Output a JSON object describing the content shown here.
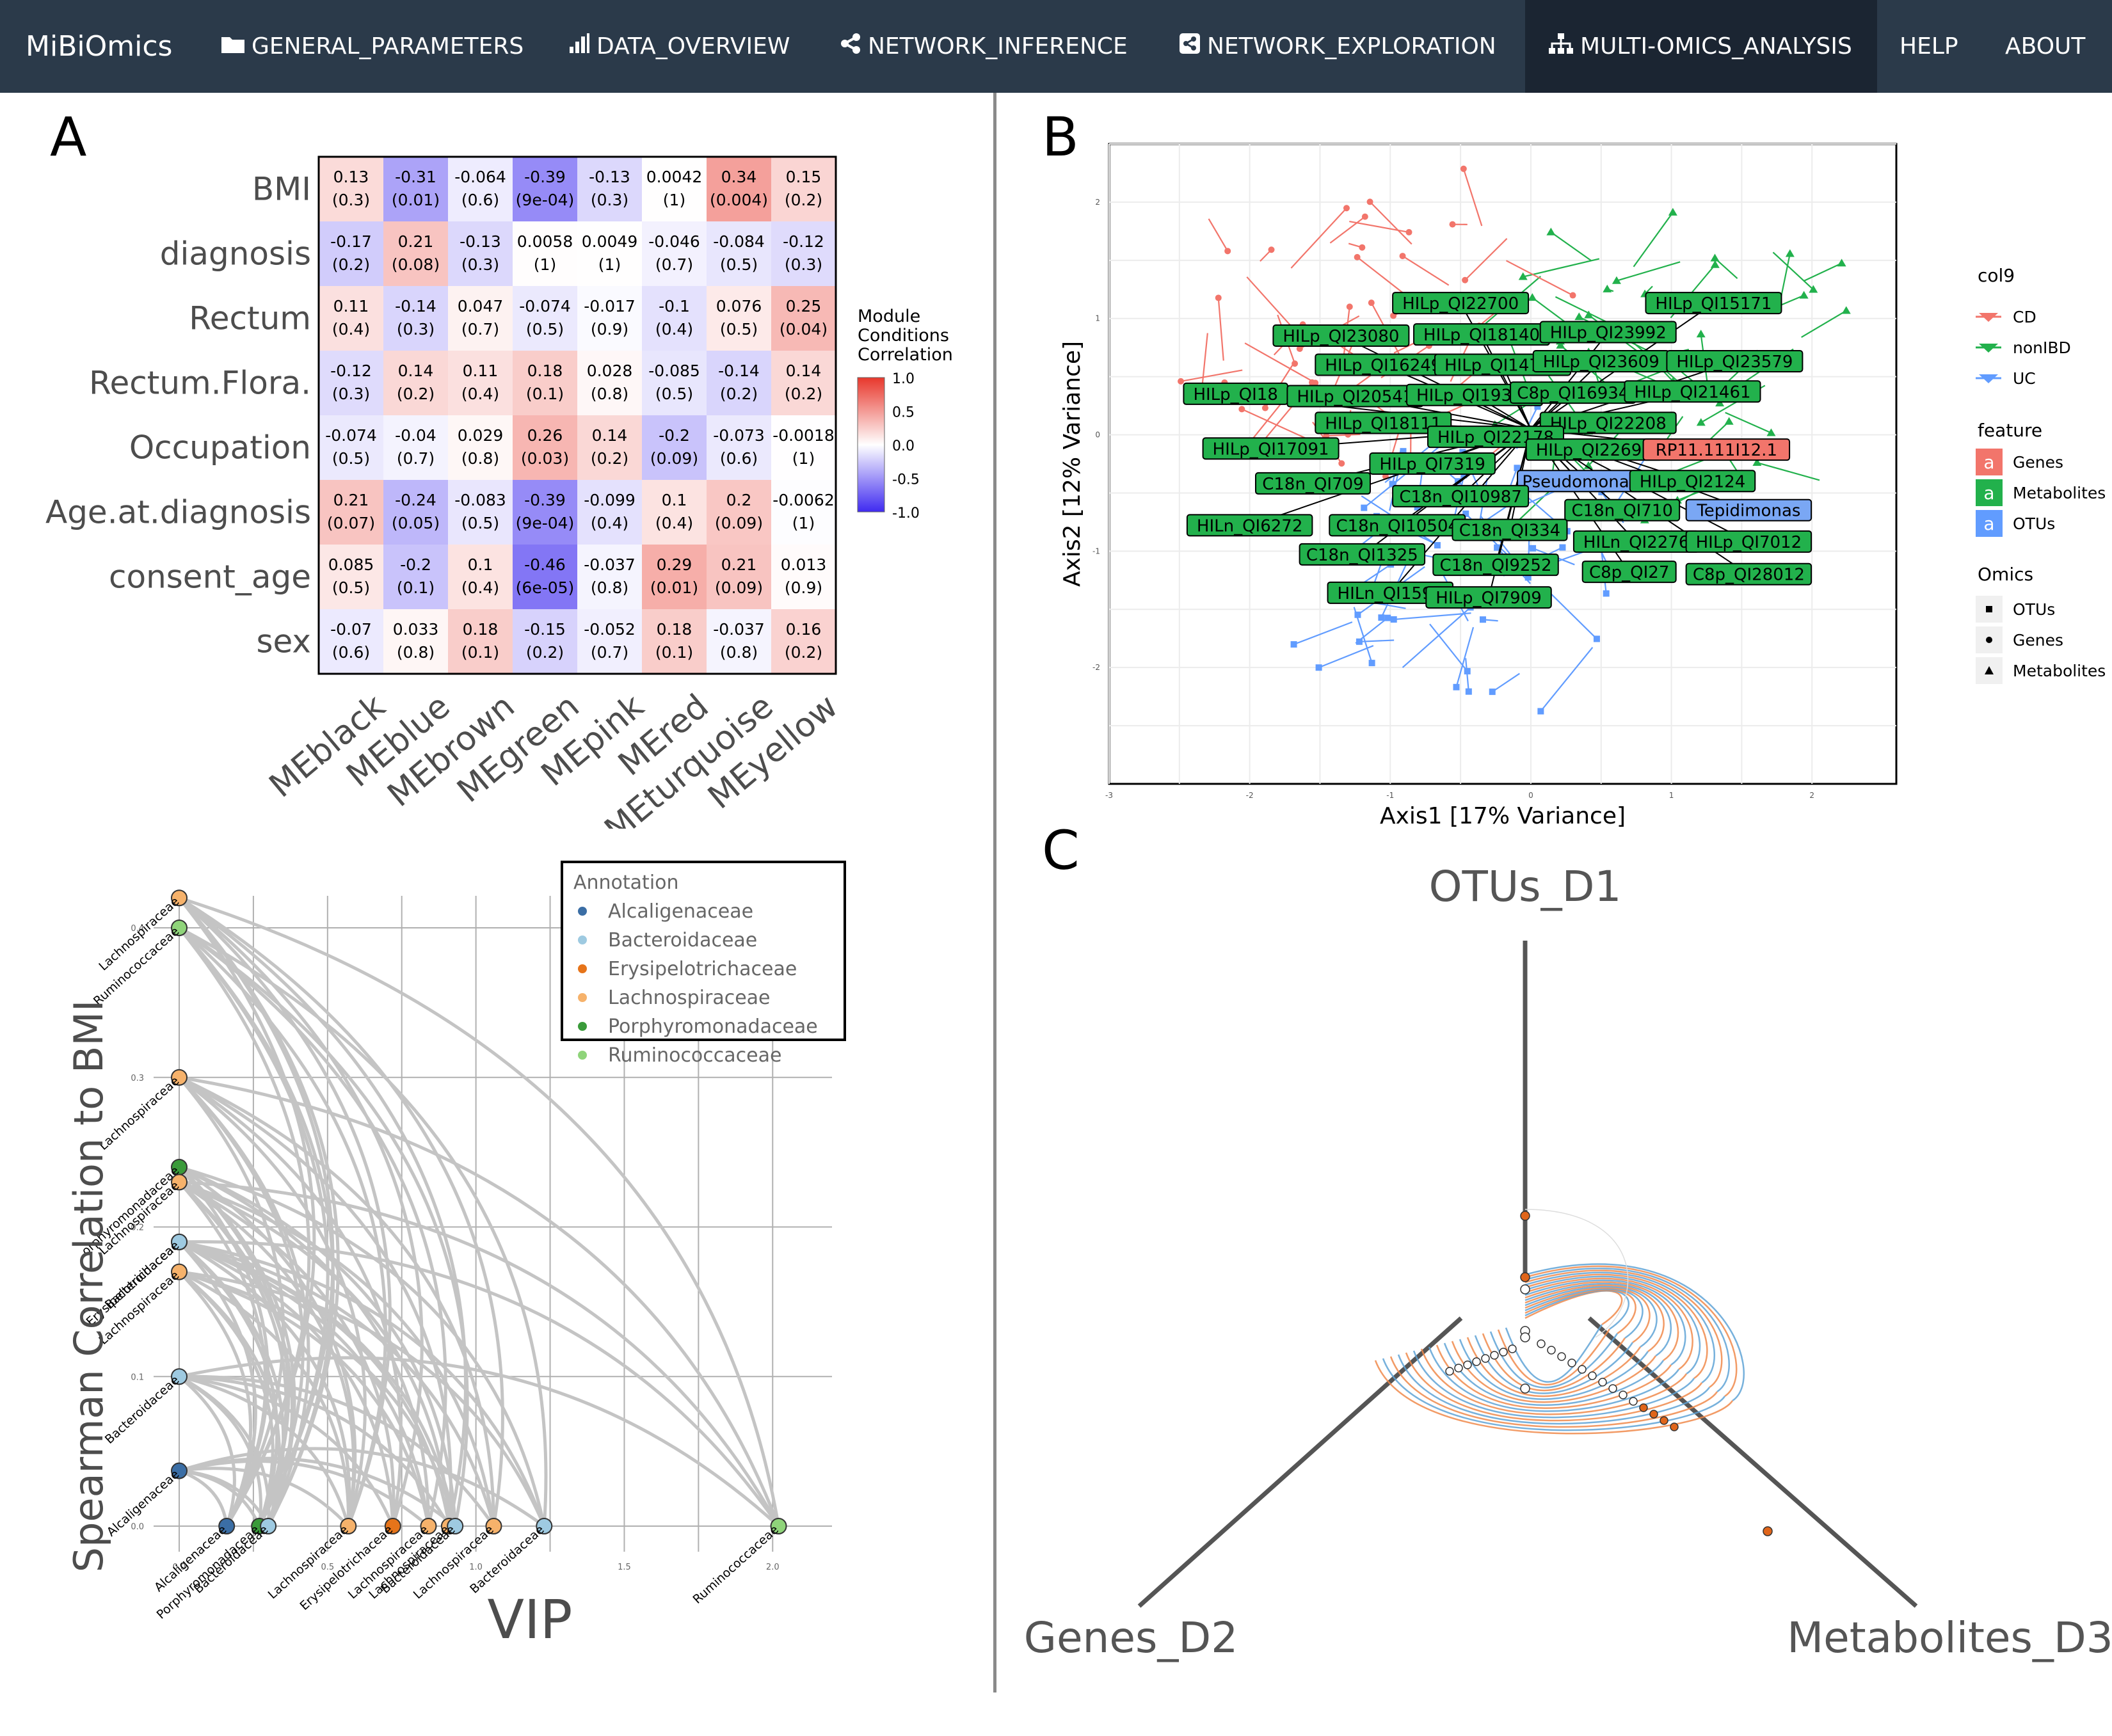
{
  "navbar": {
    "brand": "MiBiOmics",
    "items": [
      {
        "label": "GENERAL_PARAMETERS",
        "icon": "folder-icon"
      },
      {
        "label": "DATA_OVERVIEW",
        "icon": "bar-chart-icon"
      },
      {
        "label": "NETWORK_INFERENCE",
        "icon": "share-icon"
      },
      {
        "label": "NETWORK_EXPLORATION",
        "icon": "share-square-icon"
      },
      {
        "label": "MULTI-OMICS_ANALYSIS",
        "icon": "sitemap-icon",
        "active": true
      },
      {
        "label": "HELP"
      },
      {
        "label": "ABOUT"
      }
    ]
  },
  "panels": {
    "a": "A",
    "b": "B",
    "c": "C"
  },
  "heatmap": {
    "rows": [
      "BMI",
      "diagnosis",
      "Rectum",
      "Rectum.Flora.",
      "Occupation",
      "Age.at.diagnosis",
      "consent_age",
      "sex"
    ],
    "cols": [
      "MEblack",
      "MEblue",
      "MEbrown",
      "MEgreen",
      "MEpink",
      "MEred",
      "MEturquoise",
      "MEyellow"
    ],
    "values": [
      [
        "0.13",
        "-0.31",
        "-0.064",
        "-0.39",
        "-0.13",
        "0.0042",
        "0.34",
        "0.15"
      ],
      [
        "-0.17",
        "0.21",
        "-0.13",
        "0.0058",
        "0.0049",
        "-0.046",
        "-0.084",
        "-0.12"
      ],
      [
        "0.11",
        "-0.14",
        "0.047",
        "-0.074",
        "-0.017",
        "-0.1",
        "0.076",
        "0.25"
      ],
      [
        "-0.12",
        "0.14",
        "0.11",
        "0.18",
        "0.028",
        "-0.085",
        "-0.14",
        "0.14"
      ],
      [
        "-0.074",
        "-0.04",
        "0.029",
        "0.26",
        "0.14",
        "-0.2",
        "-0.073",
        "-0.0018"
      ],
      [
        "0.21",
        "-0.24",
        "-0.083",
        "-0.39",
        "-0.099",
        "0.1",
        "0.2",
        "-0.0062"
      ],
      [
        "0.085",
        "-0.2",
        "0.1",
        "-0.46",
        "-0.037",
        "0.29",
        "0.21",
        "0.013"
      ],
      [
        "-0.07",
        "0.033",
        "0.18",
        "-0.15",
        "-0.052",
        "0.18",
        "-0.037",
        "0.16"
      ]
    ],
    "pvalues": [
      [
        "(0.3)",
        "(0.01)",
        "(0.6)",
        "(9e-04)",
        "(0.3)",
        "(1)",
        "(0.004)",
        "(0.2)"
      ],
      [
        "(0.2)",
        "(0.08)",
        "(0.3)",
        "(1)",
        "(1)",
        "(0.7)",
        "(0.5)",
        "(0.3)"
      ],
      [
        "(0.4)",
        "(0.3)",
        "(0.7)",
        "(0.5)",
        "(0.9)",
        "(0.4)",
        "(0.5)",
        "(0.04)"
      ],
      [
        "(0.3)",
        "(0.2)",
        "(0.4)",
        "(0.1)",
        "(0.8)",
        "(0.5)",
        "(0.2)",
        "(0.2)"
      ],
      [
        "(0.5)",
        "(0.7)",
        "(0.8)",
        "(0.03)",
        "(0.2)",
        "(0.09)",
        "(0.6)",
        "(1)"
      ],
      [
        "(0.07)",
        "(0.05)",
        "(0.5)",
        "(9e-04)",
        "(0.4)",
        "(0.4)",
        "(0.09)",
        "(1)"
      ],
      [
        "(0.5)",
        "(0.1)",
        "(0.4)",
        "(6e-05)",
        "(0.8)",
        "(0.01)",
        "(0.09)",
        "(0.9)"
      ],
      [
        "(0.6)",
        "(0.8)",
        "(0.1)",
        "(0.2)",
        "(0.7)",
        "(0.1)",
        "(0.8)",
        "(0.2)"
      ]
    ],
    "legend_title": [
      "Module",
      "Conditions",
      "Correlation"
    ],
    "legend_ticks": [
      "1.0",
      "0.5",
      "0.0",
      "-0.5",
      "-1.0"
    ],
    "colors": {
      "pos": "#e8372c",
      "neg": "#3f2af0",
      "mid": "#ffffff"
    }
  },
  "vip_plot": {
    "ylabel": "Spearman Correlation to BMI",
    "xlabel": "VIP",
    "yticks": [
      "0.0",
      "0.1",
      "0.2",
      "0.3",
      "0.4"
    ],
    "xticks": [
      "0.0",
      "0.5",
      "1.0",
      "1.5",
      "2.0"
    ],
    "legend_title": "Annotation",
    "legend": [
      {
        "name": "Alcaligenaceae",
        "color": "#3b6ea5"
      },
      {
        "name": "Bacteroidaceae",
        "color": "#9ecae1"
      },
      {
        "name": "Erysipelotrichaceae",
        "color": "#e6741a"
      },
      {
        "name": "Lachnospiraceae",
        "color": "#f6b26b"
      },
      {
        "name": "Porphyromonadaceae",
        "color": "#3a9b3a"
      },
      {
        "name": "Ruminococcaceae",
        "color": "#8fd47a"
      }
    ],
    "points": [
      {
        "label": "Lachnospiraceae",
        "fam": 3,
        "vip": 0.0,
        "cor": 0.42
      },
      {
        "label": "Ruminococcaceae",
        "fam": 5,
        "vip": 0.0,
        "cor": 0.4
      },
      {
        "label": "Lachnospiraceae",
        "fam": 3,
        "vip": 0.0,
        "cor": 0.3
      },
      {
        "label": "orphyromonadaceae",
        "fam": 4,
        "vip": 0.0,
        "cor": 0.24
      },
      {
        "label": "Lachnospiraceae",
        "fam": 3,
        "vip": 0.0,
        "cor": 0.23
      },
      {
        "label": "Erysipelotrichaceae",
        "fam": 2,
        "vip": 0.0,
        "cor": 0.19
      },
      {
        "label": "Bacteroidaceae",
        "fam": 1,
        "vip": 0.0,
        "cor": 0.19
      },
      {
        "label": "Lachnospiraceae",
        "fam": 3,
        "vip": 0.0,
        "cor": 0.17
      },
      {
        "label": "Bacteroidaceae",
        "fam": 1,
        "vip": 0.0,
        "cor": 0.1
      },
      {
        "label": "Alcaligenaceae",
        "fam": 0,
        "vip": 0.0,
        "cor": 0.037
      },
      {
        "label": "Alcaligenaceae",
        "fam": 0,
        "vip": 0.16,
        "cor": 0.0
      },
      {
        "label": "Porphyromonadaceae",
        "fam": 4,
        "vip": 0.27,
        "cor": 0.0
      },
      {
        "label": "Bacteroidaceae",
        "fam": 1,
        "vip": 0.3,
        "cor": 0.0
      },
      {
        "label": "Lachnospiraceae",
        "fam": 3,
        "vip": 0.57,
        "cor": 0.0
      },
      {
        "label": "Erysipelotrichaceae",
        "fam": 2,
        "vip": 0.72,
        "cor": 0.0
      },
      {
        "label": "Lachnospiraceae",
        "fam": 3,
        "vip": 0.84,
        "cor": 0.0
      },
      {
        "label": "Lachnospiraceae",
        "fam": 3,
        "vip": 0.91,
        "cor": 0.0
      },
      {
        "label": "Bacteroidaceae",
        "fam": 1,
        "vip": 0.93,
        "cor": 0.0
      },
      {
        "label": "Lachnospiraceae",
        "fam": 3,
        "vip": 1.06,
        "cor": 0.0
      },
      {
        "label": "Bacteroidaceae",
        "fam": 1,
        "vip": 1.23,
        "cor": 0.0
      },
      {
        "label": "Ruminococcaceae",
        "fam": 5,
        "vip": 2.02,
        "cor": 0.0
      }
    ]
  },
  "pca_plot": {
    "xlabel": "Axis1 [17% Variance]",
    "ylabel": "Axis2 [12% Variance]",
    "xticks": [
      "-3",
      "-2",
      "-1",
      "0",
      "1",
      "2"
    ],
    "yticks": [
      "2",
      "1",
      "0",
      "-1",
      "-2"
    ],
    "legend_col9_title": "col9",
    "legend_col9": [
      {
        "name": "CD",
        "color": "#f2756b"
      },
      {
        "name": "nonIBD",
        "color": "#22b14c"
      },
      {
        "name": "UC",
        "color": "#619cff"
      }
    ],
    "legend_feature_title": "feature",
    "legend_feature": [
      {
        "name": "Genes",
        "color": "#f2756b"
      },
      {
        "name": "Metabolites",
        "color": "#22b14c"
      },
      {
        "name": "OTUs",
        "color": "#619cff"
      }
    ],
    "legend_feature_key": "a",
    "legend_omics_title": "Omics",
    "legend_omics": [
      {
        "name": "OTUs",
        "shape": "square"
      },
      {
        "name": "Genes",
        "shape": "circle"
      },
      {
        "name": "Metabolites",
        "shape": "triangle"
      }
    ],
    "labels": [
      {
        "text": "HILp_QI22700",
        "x": -0.5,
        "y": 1.13,
        "t": "m"
      },
      {
        "text": "HILp_QI15171",
        "x": 1.3,
        "y": 1.13,
        "t": "m"
      },
      {
        "text": "HILp_QI23080",
        "x": -1.35,
        "y": 0.85,
        "t": "m"
      },
      {
        "text": "HILp_QI18140",
        "x": -0.35,
        "y": 0.86,
        "t": "m"
      },
      {
        "text": "HILp_QI23992",
        "x": 0.55,
        "y": 0.88,
        "t": "m"
      },
      {
        "text": "HILp_QI16249",
        "x": -1.05,
        "y": 0.6,
        "t": "m"
      },
      {
        "text": "HILp_QI14734",
        "x": -0.2,
        "y": 0.6,
        "t": "m"
      },
      {
        "text": "HILp_QI23609",
        "x": 0.5,
        "y": 0.63,
        "t": "m"
      },
      {
        "text": "HILp_QI23579",
        "x": 1.45,
        "y": 0.63,
        "t": "m"
      },
      {
        "text": "HILp_QI18",
        "x": -2.1,
        "y": 0.35,
        "t": "m"
      },
      {
        "text": "HILp_QI20541",
        "x": -1.25,
        "y": 0.33,
        "t": "m"
      },
      {
        "text": "HILp_QI19340",
        "x": -0.4,
        "y": 0.34,
        "t": "m"
      },
      {
        "text": "C8p_QI16934",
        "x": 0.3,
        "y": 0.36,
        "t": "m"
      },
      {
        "text": "HILp_QI21461",
        "x": 1.15,
        "y": 0.37,
        "t": "m"
      },
      {
        "text": "HILp_QI18111",
        "x": -1.05,
        "y": 0.1,
        "t": "m"
      },
      {
        "text": "HILp_QI22208",
        "x": 0.55,
        "y": 0.1,
        "t": "m"
      },
      {
        "text": "HILp_QI22178",
        "x": -0.25,
        "y": -0.02,
        "t": "m"
      },
      {
        "text": "HILp_QI17091",
        "x": -1.85,
        "y": -0.12,
        "t": "m"
      },
      {
        "text": "HILp_QI22692",
        "x": 0.45,
        "y": -0.13,
        "t": "m"
      },
      {
        "text": "RP11.111I12.1",
        "x": 1.32,
        "y": -0.13,
        "t": "g"
      },
      {
        "text": "HILp_QI7319",
        "x": -0.7,
        "y": -0.25,
        "t": "m"
      },
      {
        "text": "C18n_QI709",
        "x": -1.55,
        "y": -0.42,
        "t": "m"
      },
      {
        "text": "Pseudomonas",
        "x": 0.35,
        "y": -0.4,
        "t": "o"
      },
      {
        "text": "HILp_QI2124",
        "x": 1.15,
        "y": -0.4,
        "t": "m"
      },
      {
        "text": "C18n_QI10987",
        "x": -0.5,
        "y": -0.53,
        "t": "m"
      },
      {
        "text": "C18n_QI710",
        "x": 0.65,
        "y": -0.65,
        "t": "m"
      },
      {
        "text": "Tepidimonas",
        "x": 1.55,
        "y": -0.65,
        "t": "o"
      },
      {
        "text": "HILn_QI6272",
        "x": -2.0,
        "y": -0.78,
        "t": "m"
      },
      {
        "text": "C18n_QI10504",
        "x": -0.95,
        "y": -0.78,
        "t": "m"
      },
      {
        "text": "C18n_QI334",
        "x": -0.15,
        "y": -0.82,
        "t": "m"
      },
      {
        "text": "HILn_QI2276",
        "x": 0.75,
        "y": -0.92,
        "t": "m"
      },
      {
        "text": "HILp_QI7012",
        "x": 1.55,
        "y": -0.92,
        "t": "m"
      },
      {
        "text": "C18n_QI1325",
        "x": -1.2,
        "y": -1.03,
        "t": "m"
      },
      {
        "text": "C18n_QI9252",
        "x": -0.25,
        "y": -1.12,
        "t": "m"
      },
      {
        "text": "C8p_QI27",
        "x": 0.7,
        "y": -1.18,
        "t": "m"
      },
      {
        "text": "C8p_QI28012",
        "x": 1.55,
        "y": -1.2,
        "t": "m"
      },
      {
        "text": "HILn_QI1594",
        "x": -1.0,
        "y": -1.36,
        "t": "m"
      },
      {
        "text": "HILp_QI7909",
        "x": -0.3,
        "y": -1.4,
        "t": "m"
      }
    ]
  },
  "hive_plot": {
    "axis_top": "OTUs_D1",
    "axis_left": "Genes_D2",
    "axis_right": "Metabolites_D3",
    "edge_colors": [
      "#f08a4b",
      "#5fa3d6"
    ],
    "node_colors": {
      "hub": "#e0651a",
      "plain": "#ffffff"
    }
  }
}
